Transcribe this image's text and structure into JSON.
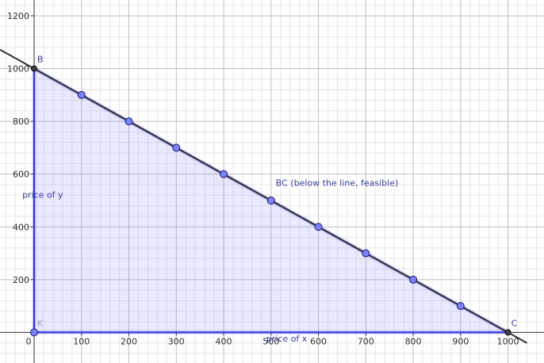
{
  "chart_data": {
    "type": "line",
    "xlim": [
      -72,
      1076
    ],
    "ylim": [
      -116,
      1260
    ],
    "x_ticks": [
      0,
      100,
      200,
      300,
      400,
      500,
      600,
      700,
      800,
      900,
      1000
    ],
    "x_tick_labels": [
      "0",
      "100",
      "200",
      "300",
      "400",
      "500",
      "600",
      "700",
      "800",
      "900",
      "1000"
    ],
    "y_ticks": [
      200,
      400,
      600,
      800,
      1000,
      1200
    ],
    "y_tick_labels": [
      "200",
      "400",
      "600",
      "800",
      "1000",
      "1200"
    ],
    "grid": true,
    "colors": {
      "grid_major": "#c0c0c0",
      "grid_minor": "#e8e8e8",
      "axis": "#303030",
      "region_fill": "#7070ff",
      "region_edge": "#3030e0",
      "point_fill": "#8080ff",
      "point_stroke": "#1a1a70",
      "endpoint": "#404040",
      "ext_line": "#303030",
      "label_blue": "#4040a0",
      "label_grey": "#a0a0c0"
    },
    "region": {
      "vertices": [
        [
          0,
          0
        ],
        [
          0,
          1000
        ],
        [
          1000,
          0
        ]
      ]
    },
    "extended_line": {
      "x": [
        -72,
        1040
      ],
      "y": [
        1072,
        -40
      ]
    },
    "points": [
      {
        "x": 100,
        "y": 900
      },
      {
        "x": 200,
        "y": 800
      },
      {
        "x": 300,
        "y": 700
      },
      {
        "x": 400,
        "y": 600
      },
      {
        "x": 500,
        "y": 500
      },
      {
        "x": 600,
        "y": 400
      },
      {
        "x": 700,
        "y": 300
      },
      {
        "x": 800,
        "y": 200
      },
      {
        "x": 900,
        "y": 100
      },
      {
        "x": 0,
        "y": 0
      }
    ],
    "endpoints": [
      {
        "label": "B",
        "x": 0,
        "y": 1000
      },
      {
        "label": "C",
        "x": 1000,
        "y": 0
      }
    ],
    "point_labels": [
      {
        "text": "K",
        "x": 0,
        "y": 0
      }
    ],
    "annotations": [
      {
        "name": "line-label",
        "text": "BC (below the line, feasible)",
        "x": 510,
        "y": 555
      },
      {
        "name": "y-caption",
        "text": "price of y",
        "x": -25,
        "y": 510
      },
      {
        "name": "x-caption",
        "text": "price of x",
        "x": 490,
        "y": -35
      }
    ]
  }
}
